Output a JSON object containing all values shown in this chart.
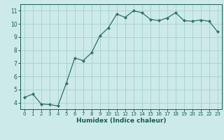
{
  "x": [
    0,
    1,
    2,
    3,
    4,
    5,
    6,
    7,
    8,
    9,
    10,
    11,
    12,
    13,
    14,
    15,
    16,
    17,
    18,
    19,
    20,
    21,
    22,
    23
  ],
  "y": [
    4.4,
    4.65,
    3.9,
    3.85,
    3.75,
    5.5,
    7.4,
    7.2,
    7.8,
    9.1,
    9.7,
    10.75,
    10.5,
    11.0,
    10.85,
    10.35,
    10.25,
    10.45,
    10.85,
    10.25,
    10.2,
    10.3,
    10.2,
    9.4
  ],
  "bg_color": "#cceae7",
  "grid_color": "#aad4d0",
  "line_color": "#2d7068",
  "marker_color": "#2d7068",
  "xlabel": "Humidex (Indice chaleur)",
  "xlabel_color": "#1a5c50",
  "tick_color": "#1a5c50",
  "ylim": [
    3.5,
    11.5
  ],
  "xlim": [
    -0.5,
    23.5
  ],
  "yticks": [
    4,
    5,
    6,
    7,
    8,
    9,
    10,
    11
  ],
  "xticks": [
    0,
    1,
    2,
    3,
    4,
    5,
    6,
    7,
    8,
    9,
    10,
    11,
    12,
    13,
    14,
    15,
    16,
    17,
    18,
    19,
    20,
    21,
    22,
    23
  ]
}
